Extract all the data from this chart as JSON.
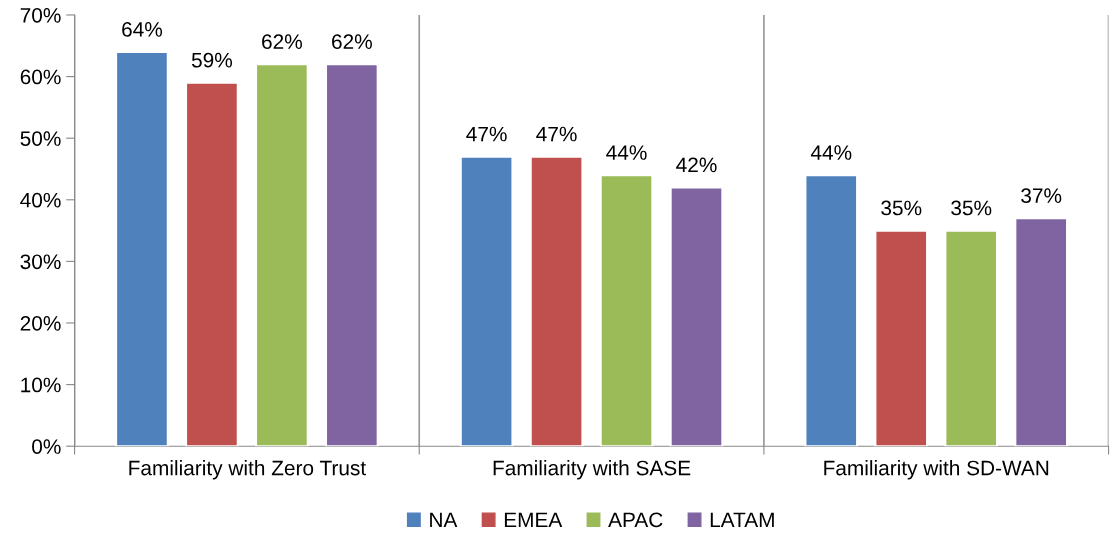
{
  "chart_data": {
    "type": "bar",
    "categories": [
      "Familiarity with Zero Trust",
      "Familiarity with SASE",
      "Familiarity with SD-WAN"
    ],
    "series": [
      {
        "name": "NA",
        "color": "#4f81bd",
        "values": [
          64,
          47,
          44
        ],
        "value_labels": [
          "64%",
          "47%",
          "44%"
        ]
      },
      {
        "name": "EMEA",
        "color": "#c0504d",
        "values": [
          59,
          47,
          35
        ],
        "value_labels": [
          "59%",
          "47%",
          "35%"
        ]
      },
      {
        "name": "APAC",
        "color": "#9bbb59",
        "values": [
          62,
          44,
          35
        ],
        "value_labels": [
          "62%",
          "44%",
          "35%"
        ]
      },
      {
        "name": "LATAM",
        "color": "#8064a2",
        "values": [
          62,
          42,
          37
        ],
        "value_labels": [
          "62%",
          "42%",
          "37%"
        ]
      }
    ],
    "ylim": [
      0,
      70
    ],
    "yticks": [
      {
        "value": 0,
        "label": "0%"
      },
      {
        "value": 10,
        "label": "10%"
      },
      {
        "value": 20,
        "label": "20%"
      },
      {
        "value": 30,
        "label": "30%"
      },
      {
        "value": 40,
        "label": "40%"
      },
      {
        "value": 50,
        "label": "50%"
      },
      {
        "value": 60,
        "label": "60%"
      },
      {
        "value": 70,
        "label": "70%"
      }
    ],
    "grid": "x",
    "legend": "bottom"
  }
}
